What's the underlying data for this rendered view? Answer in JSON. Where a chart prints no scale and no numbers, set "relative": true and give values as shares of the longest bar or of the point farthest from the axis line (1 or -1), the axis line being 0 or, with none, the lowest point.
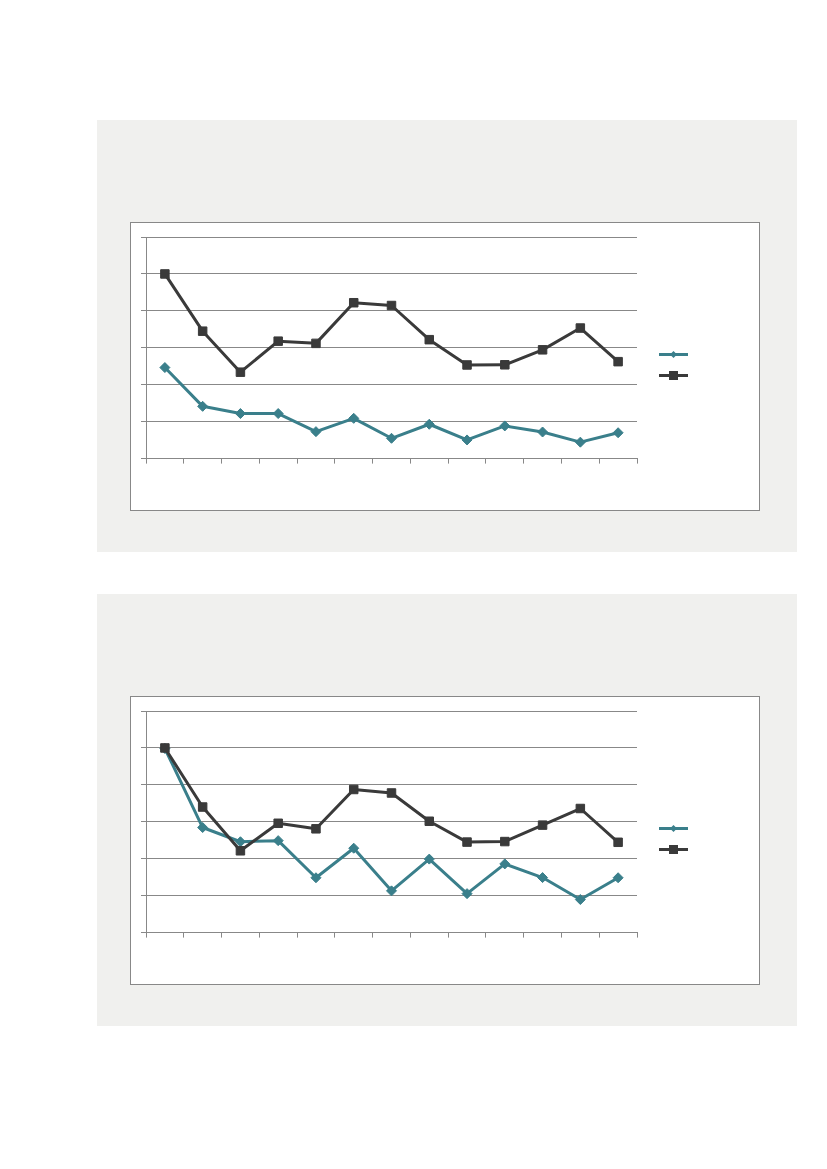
{
  "chart_data": [
    {
      "type": "line",
      "relative": true,
      "categories": [
        null,
        null,
        null,
        null,
        null,
        null,
        null,
        null,
        null,
        null,
        null,
        null,
        null
      ],
      "grid": "y",
      "series": [
        {
          "color": "#3a7f8b",
          "marker": "diamond",
          "values": [
            0.493,
            0.283,
            0.244,
            0.244,
            0.146,
            0.218,
            0.11,
            0.186,
            0.101,
            0.177,
            0.144,
            0.089,
            0.14
          ]
        },
        {
          "color": "#3a3a3a",
          "marker": "square",
          "values": [
            1,
            0.69,
            0.468,
            0.636,
            0.624,
            0.844,
            0.829,
            0.644,
            0.507,
            0.508,
            0.589,
            0.707,
            0.525
          ]
        }
      ]
    },
    {
      "type": "line",
      "relative": true,
      "categories": [
        null,
        null,
        null,
        null,
        null,
        null,
        null,
        null,
        null,
        null,
        null,
        null,
        null
      ],
      "grid": "y",
      "series": [
        {
          "color": "#3a7f8b",
          "marker": "diamond",
          "values": [
            0.997,
            0.569,
            0.492,
            0.498,
            0.297,
            0.457,
            0.226,
            0.398,
            0.211,
            0.372,
            0.298,
            0.179,
            0.297
          ]
        },
        {
          "color": "#3a3a3a",
          "marker": "square",
          "values": [
            1,
            0.68,
            0.443,
            0.592,
            0.562,
            0.775,
            0.756,
            0.603,
            0.49,
            0.493,
            0.582,
            0.672,
            0.489
          ]
        }
      ]
    }
  ]
}
